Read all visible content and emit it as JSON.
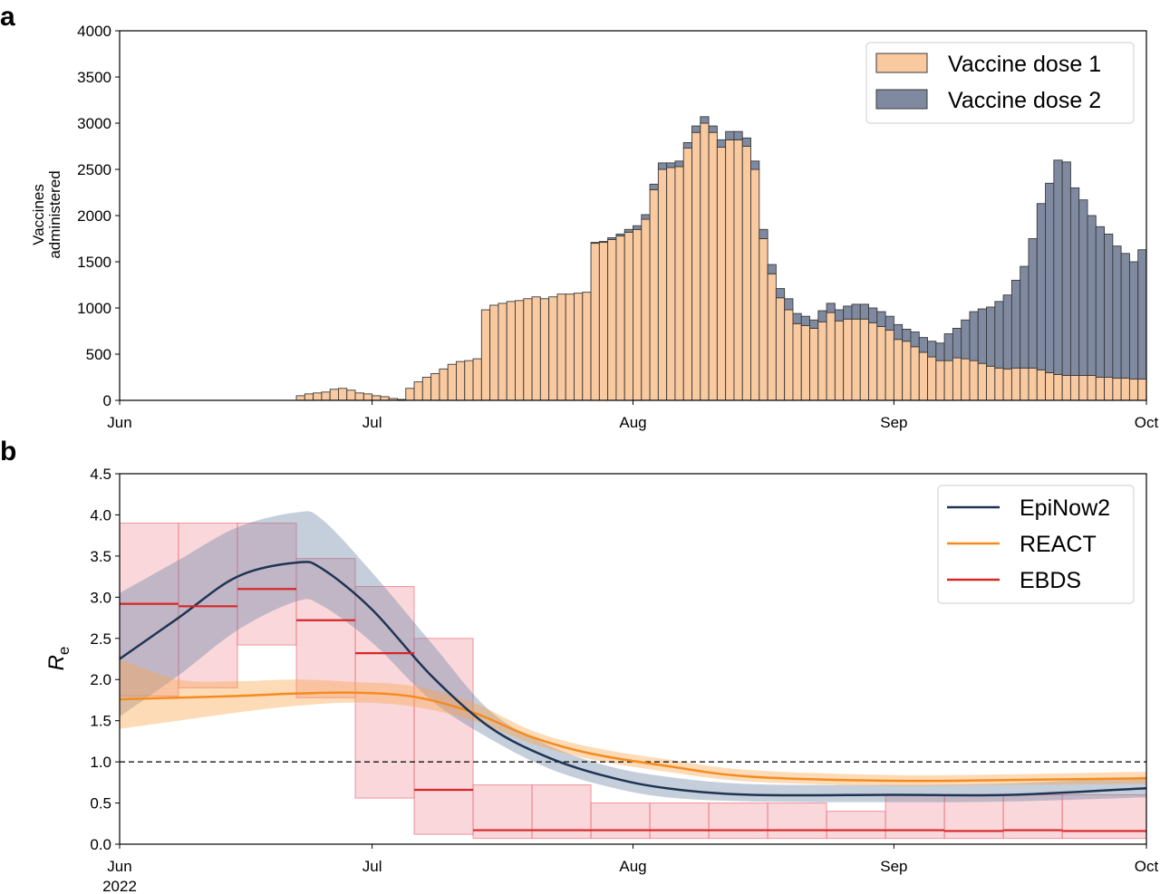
{
  "panel_a": {
    "label": "a",
    "chart_data": {
      "type": "bar",
      "stacked": true,
      "ylabel": "Vaccines\nadministered",
      "ylim": [
        0,
        4000
      ],
      "yticks": [
        0,
        500,
        1000,
        1500,
        2000,
        2500,
        3000,
        3500,
        4000
      ],
      "xlim": [
        "2022-06-01",
        "2022-10-01"
      ],
      "xticks": [
        "Jun",
        "Jul",
        "Aug",
        "Sep",
        "Oct"
      ],
      "legend_position": "top-right",
      "x": [
        "2022-06-22",
        "2022-06-23",
        "2022-06-24",
        "2022-06-25",
        "2022-06-26",
        "2022-06-27",
        "2022-06-28",
        "2022-06-29",
        "2022-06-30",
        "2022-07-01",
        "2022-07-02",
        "2022-07-03",
        "2022-07-04",
        "2022-07-05",
        "2022-07-06",
        "2022-07-07",
        "2022-07-08",
        "2022-07-09",
        "2022-07-10",
        "2022-07-11",
        "2022-07-12",
        "2022-07-13",
        "2022-07-14",
        "2022-07-15",
        "2022-07-16",
        "2022-07-17",
        "2022-07-18",
        "2022-07-19",
        "2022-07-20",
        "2022-07-21",
        "2022-07-22",
        "2022-07-23",
        "2022-07-24",
        "2022-07-25",
        "2022-07-26",
        "2022-07-27",
        "2022-07-28",
        "2022-07-29",
        "2022-07-30",
        "2022-07-31",
        "2022-08-01",
        "2022-08-02",
        "2022-08-03",
        "2022-08-04",
        "2022-08-05",
        "2022-08-06",
        "2022-08-07",
        "2022-08-08",
        "2022-08-09",
        "2022-08-10",
        "2022-08-11",
        "2022-08-12",
        "2022-08-13",
        "2022-08-14",
        "2022-08-15",
        "2022-08-16",
        "2022-08-17",
        "2022-08-18",
        "2022-08-19",
        "2022-08-20",
        "2022-08-21",
        "2022-08-22",
        "2022-08-23",
        "2022-08-24",
        "2022-08-25",
        "2022-08-26",
        "2022-08-27",
        "2022-08-28",
        "2022-08-29",
        "2022-08-30",
        "2022-08-31",
        "2022-09-01",
        "2022-09-02",
        "2022-09-03",
        "2022-09-04",
        "2022-09-05",
        "2022-09-06",
        "2022-09-07",
        "2022-09-08",
        "2022-09-09",
        "2022-09-10",
        "2022-09-11",
        "2022-09-12",
        "2022-09-13",
        "2022-09-14",
        "2022-09-15",
        "2022-09-16",
        "2022-09-17",
        "2022-09-18",
        "2022-09-19",
        "2022-09-20",
        "2022-09-21",
        "2022-09-22",
        "2022-09-23",
        "2022-09-24",
        "2022-09-25",
        "2022-09-26",
        "2022-09-27",
        "2022-09-28",
        "2022-09-29",
        "2022-09-30"
      ],
      "series": [
        {
          "name": "Vaccine dose 1",
          "color": "#f9c9a0",
          "values": [
            50,
            70,
            80,
            90,
            120,
            130,
            110,
            80,
            70,
            50,
            40,
            20,
            10,
            130,
            200,
            250,
            290,
            340,
            390,
            420,
            430,
            450,
            980,
            1030,
            1050,
            1070,
            1080,
            1100,
            1120,
            1100,
            1120,
            1150,
            1150,
            1160,
            1170,
            1700,
            1710,
            1740,
            1780,
            1820,
            1850,
            1960,
            2280,
            2500,
            2520,
            2530,
            2730,
            2900,
            3000,
            2900,
            2740,
            2820,
            2820,
            2750,
            2500,
            1750,
            1370,
            1110,
            980,
            830,
            810,
            780,
            850,
            950,
            860,
            880,
            880,
            880,
            840,
            800,
            760,
            660,
            640,
            580,
            520,
            470,
            430,
            430,
            460,
            450,
            430,
            400,
            370,
            350,
            340,
            350,
            350,
            350,
            330,
            300,
            280,
            270,
            270,
            270,
            270,
            250,
            250,
            240,
            240,
            230,
            230
          ]
        },
        {
          "name": "Vaccine dose 2",
          "color": "#7f8aa0",
          "values": [
            0,
            0,
            0,
            0,
            0,
            0,
            0,
            0,
            0,
            0,
            0,
            0,
            0,
            0,
            0,
            0,
            0,
            0,
            0,
            0,
            0,
            0,
            0,
            0,
            0,
            0,
            0,
            0,
            0,
            0,
            0,
            0,
            0,
            0,
            0,
            10,
            10,
            20,
            20,
            30,
            40,
            50,
            60,
            70,
            50,
            60,
            60,
            70,
            70,
            70,
            80,
            90,
            90,
            90,
            90,
            100,
            100,
            100,
            120,
            110,
            100,
            90,
            120,
            100,
            120,
            140,
            160,
            160,
            160,
            160,
            150,
            160,
            130,
            160,
            160,
            170,
            190,
            290,
            320,
            420,
            530,
            590,
            640,
            720,
            800,
            950,
            1100,
            1400,
            1800,
            2050,
            2320,
            2310,
            2030,
            1900,
            1730,
            1630,
            1550,
            1430,
            1350,
            1270,
            1400
          ]
        }
      ]
    }
  },
  "panel_b": {
    "label": "b",
    "chart_data": {
      "type": "line",
      "ylabel": "R",
      "ylabel_sub": "e",
      "ylim": [
        0,
        4.5
      ],
      "yticks": [
        "0.0",
        "0.5",
        "1.0",
        "1.5",
        "2.0",
        "2.5",
        "3.0",
        "3.5",
        "4.0",
        "4.5"
      ],
      "xlim": [
        "2022-06-01",
        "2022-10-01"
      ],
      "xticks": [
        "Jun",
        "Jul",
        "Aug",
        "Sep",
        "Oct"
      ],
      "xtick_year": "2022",
      "reference_line": 1.0,
      "legend_position": "top-right",
      "series": [
        {
          "name": "EpiNow2",
          "color": "#1f3454",
          "x": [
            "2022-06-01",
            "2022-06-08",
            "2022-06-15",
            "2022-06-22",
            "2022-06-25",
            "2022-07-01",
            "2022-07-08",
            "2022-07-15",
            "2022-07-22",
            "2022-07-29",
            "2022-08-05",
            "2022-08-15",
            "2022-09-01",
            "2022-09-15",
            "2022-10-01"
          ],
          "y": [
            2.25,
            2.75,
            3.25,
            3.42,
            3.35,
            2.85,
            2.05,
            1.42,
            1.05,
            0.82,
            0.68,
            0.6,
            0.6,
            0.6,
            0.68
          ],
          "ci_lower": [
            1.55,
            2.05,
            2.6,
            2.95,
            2.9,
            2.45,
            1.75,
            1.28,
            0.92,
            0.7,
            0.57,
            0.52,
            0.51,
            0.52,
            0.57
          ],
          "ci_upper": [
            3.05,
            3.45,
            3.85,
            4.03,
            3.95,
            3.3,
            2.45,
            1.62,
            1.2,
            0.95,
            0.82,
            0.73,
            0.72,
            0.74,
            0.82
          ]
        },
        {
          "name": "REACT",
          "color": "#f58b1f",
          "x": [
            "2022-06-01",
            "2022-06-08",
            "2022-06-15",
            "2022-06-22",
            "2022-06-29",
            "2022-07-06",
            "2022-07-13",
            "2022-07-20",
            "2022-07-27",
            "2022-08-05",
            "2022-08-15",
            "2022-09-01",
            "2022-09-15",
            "2022-10-01"
          ],
          "y": [
            1.76,
            1.78,
            1.8,
            1.83,
            1.84,
            1.79,
            1.6,
            1.3,
            1.1,
            0.95,
            0.82,
            0.77,
            0.78,
            0.8
          ],
          "ci_lower": [
            1.4,
            1.5,
            1.6,
            1.68,
            1.72,
            1.67,
            1.5,
            1.22,
            1.03,
            0.88,
            0.76,
            0.71,
            0.72,
            0.73
          ],
          "ci_upper": [
            2.25,
            2.0,
            1.98,
            2.0,
            1.97,
            1.92,
            1.72,
            1.38,
            1.18,
            1.03,
            0.9,
            0.84,
            0.85,
            0.88
          ]
        },
        {
          "name": "EBDS",
          "color": "#d62728",
          "step": "weekly",
          "x_start": [
            "2022-06-01",
            "2022-06-08",
            "2022-06-15",
            "2022-06-22",
            "2022-06-29",
            "2022-07-06",
            "2022-07-13",
            "2022-07-20",
            "2022-07-27",
            "2022-08-03",
            "2022-08-10",
            "2022-08-17",
            "2022-08-24",
            "2022-08-31",
            "2022-09-07",
            "2022-09-14",
            "2022-09-21"
          ],
          "x_end": [
            "2022-06-08",
            "2022-06-15",
            "2022-06-22",
            "2022-06-29",
            "2022-07-06",
            "2022-07-13",
            "2022-07-20",
            "2022-07-27",
            "2022-08-03",
            "2022-08-10",
            "2022-08-17",
            "2022-08-24",
            "2022-08-31",
            "2022-09-07",
            "2022-09-14",
            "2022-09-21",
            "2022-10-01"
          ],
          "y": [
            2.92,
            2.89,
            3.1,
            2.72,
            2.32,
            0.66,
            0.17,
            0.17,
            0.17,
            0.17,
            0.17,
            0.17,
            0.17,
            0.17,
            0.16,
            0.17,
            0.16
          ],
          "ci_lower": [
            1.8,
            1.9,
            2.42,
            1.78,
            0.56,
            0.12,
            0.07,
            0.07,
            0.07,
            0.07,
            0.07,
            0.07,
            0.07,
            0.07,
            0.07,
            0.07,
            0.07
          ],
          "ci_upper": [
            3.9,
            3.9,
            3.9,
            3.47,
            3.13,
            2.5,
            0.72,
            0.72,
            0.5,
            0.5,
            0.5,
            0.5,
            0.4,
            0.6,
            0.6,
            0.6,
            0.6
          ]
        }
      ]
    }
  }
}
